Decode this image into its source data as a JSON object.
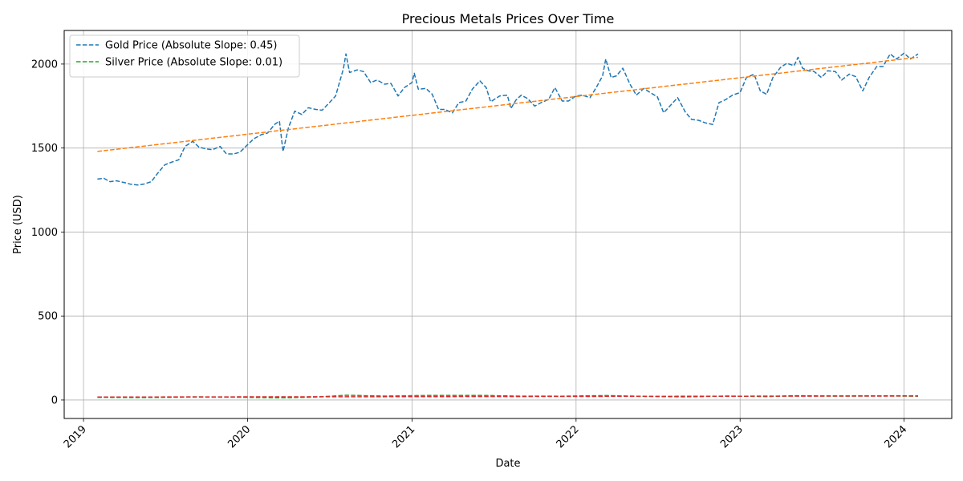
{
  "chart_data": {
    "type": "line",
    "title": "Precious Metals Prices Over Time",
    "xlabel": "Date",
    "ylabel": "Price (USD)",
    "x_tick_labels": [
      "2019",
      "2020",
      "2021",
      "2022",
      "2023",
      "2024"
    ],
    "y_tick_labels": [
      "0",
      "500",
      "1000",
      "1500",
      "2000"
    ],
    "xlim": [
      "2018-11-19",
      "2024-04-16"
    ],
    "ylim": [
      -110,
      2200
    ],
    "grid": true,
    "legend_position": "top-left",
    "series": [
      {
        "name": "Gold Price (Absolute Slope: 0.45)",
        "color": "#1f77b4",
        "style": "dashed",
        "points": [
          [
            "2019-02-01",
            1315
          ],
          [
            "2019-02-15",
            1320
          ],
          [
            "2019-03-01",
            1300
          ],
          [
            "2019-03-15",
            1305
          ],
          [
            "2019-04-01",
            1295
          ],
          [
            "2019-04-15",
            1285
          ],
          [
            "2019-05-01",
            1280
          ],
          [
            "2019-05-15",
            1285
          ],
          [
            "2019-06-01",
            1300
          ],
          [
            "2019-06-15",
            1350
          ],
          [
            "2019-07-01",
            1400
          ],
          [
            "2019-07-15",
            1415
          ],
          [
            "2019-08-01",
            1430
          ],
          [
            "2019-08-15",
            1510
          ],
          [
            "2019-09-01",
            1540
          ],
          [
            "2019-09-15",
            1505
          ],
          [
            "2019-10-01",
            1495
          ],
          [
            "2019-10-15",
            1490
          ],
          [
            "2019-11-01",
            1510
          ],
          [
            "2019-11-15",
            1465
          ],
          [
            "2019-12-01",
            1465
          ],
          [
            "2019-12-15",
            1475
          ],
          [
            "2020-01-01",
            1520
          ],
          [
            "2020-01-15",
            1555
          ],
          [
            "2020-02-01",
            1580
          ],
          [
            "2020-02-15",
            1590
          ],
          [
            "2020-03-01",
            1640
          ],
          [
            "2020-03-12",
            1660
          ],
          [
            "2020-03-20",
            1480
          ],
          [
            "2020-04-01",
            1620
          ],
          [
            "2020-04-15",
            1720
          ],
          [
            "2020-05-01",
            1700
          ],
          [
            "2020-05-15",
            1740
          ],
          [
            "2020-06-01",
            1730
          ],
          [
            "2020-06-15",
            1725
          ],
          [
            "2020-07-01",
            1770
          ],
          [
            "2020-07-15",
            1810
          ],
          [
            "2020-08-01",
            1970
          ],
          [
            "2020-08-07",
            2060
          ],
          [
            "2020-08-15",
            1950
          ],
          [
            "2020-09-01",
            1965
          ],
          [
            "2020-09-15",
            1955
          ],
          [
            "2020-10-01",
            1890
          ],
          [
            "2020-10-15",
            1905
          ],
          [
            "2020-11-01",
            1880
          ],
          [
            "2020-11-15",
            1885
          ],
          [
            "2020-12-01",
            1810
          ],
          [
            "2020-12-15",
            1860
          ],
          [
            "2021-01-01",
            1890
          ],
          [
            "2021-01-06",
            1945
          ],
          [
            "2021-01-15",
            1850
          ],
          [
            "2021-02-01",
            1855
          ],
          [
            "2021-02-15",
            1820
          ],
          [
            "2021-03-01",
            1730
          ],
          [
            "2021-03-15",
            1730
          ],
          [
            "2021-04-01",
            1710
          ],
          [
            "2021-04-15",
            1770
          ],
          [
            "2021-05-01",
            1780
          ],
          [
            "2021-05-15",
            1850
          ],
          [
            "2021-06-01",
            1900
          ],
          [
            "2021-06-15",
            1860
          ],
          [
            "2021-06-25",
            1775
          ],
          [
            "2021-07-15",
            1810
          ],
          [
            "2021-08-01",
            1815
          ],
          [
            "2021-08-09",
            1735
          ],
          [
            "2021-08-20",
            1785
          ],
          [
            "2021-09-01",
            1815
          ],
          [
            "2021-09-15",
            1795
          ],
          [
            "2021-10-01",
            1750
          ],
          [
            "2021-10-15",
            1770
          ],
          [
            "2021-11-01",
            1790
          ],
          [
            "2021-11-15",
            1860
          ],
          [
            "2021-12-01",
            1780
          ],
          [
            "2021-12-15",
            1780
          ],
          [
            "2022-01-01",
            1810
          ],
          [
            "2022-01-15",
            1815
          ],
          [
            "2022-02-01",
            1800
          ],
          [
            "2022-02-15",
            1860
          ],
          [
            "2022-03-01",
            1930
          ],
          [
            "2022-03-08",
            2030
          ],
          [
            "2022-03-20",
            1920
          ],
          [
            "2022-04-01",
            1930
          ],
          [
            "2022-04-15",
            1975
          ],
          [
            "2022-05-01",
            1880
          ],
          [
            "2022-05-15",
            1815
          ],
          [
            "2022-06-01",
            1855
          ],
          [
            "2022-06-15",
            1830
          ],
          [
            "2022-07-01",
            1805
          ],
          [
            "2022-07-15",
            1710
          ],
          [
            "2022-08-01",
            1760
          ],
          [
            "2022-08-15",
            1800
          ],
          [
            "2022-09-01",
            1715
          ],
          [
            "2022-09-15",
            1670
          ],
          [
            "2022-10-01",
            1665
          ],
          [
            "2022-10-15",
            1650
          ],
          [
            "2022-11-01",
            1640
          ],
          [
            "2022-11-15",
            1770
          ],
          [
            "2022-12-01",
            1790
          ],
          [
            "2022-12-15",
            1815
          ],
          [
            "2023-01-01",
            1830
          ],
          [
            "2023-01-15",
            1920
          ],
          [
            "2023-02-01",
            1940
          ],
          [
            "2023-02-15",
            1840
          ],
          [
            "2023-03-01",
            1820
          ],
          [
            "2023-03-15",
            1920
          ],
          [
            "2023-04-01",
            1980
          ],
          [
            "2023-04-15",
            2005
          ],
          [
            "2023-05-01",
            1990
          ],
          [
            "2023-05-10",
            2040
          ],
          [
            "2023-05-20",
            1975
          ],
          [
            "2023-06-01",
            1960
          ],
          [
            "2023-06-15",
            1955
          ],
          [
            "2023-07-01",
            1920
          ],
          [
            "2023-07-15",
            1960
          ],
          [
            "2023-08-01",
            1955
          ],
          [
            "2023-08-15",
            1905
          ],
          [
            "2023-09-01",
            1940
          ],
          [
            "2023-09-15",
            1925
          ],
          [
            "2023-10-01",
            1840
          ],
          [
            "2023-10-15",
            1920
          ],
          [
            "2023-11-01",
            1985
          ],
          [
            "2023-11-15",
            1985
          ],
          [
            "2023-12-01",
            2060
          ],
          [
            "2023-12-15",
            2030
          ],
          [
            "2024-01-01",
            2065
          ],
          [
            "2024-01-15",
            2030
          ],
          [
            "2024-02-01",
            2060
          ]
        ]
      },
      {
        "name": "",
        "color": "#ff7f0e",
        "style": "dashed",
        "points": [
          [
            "2019-02-01",
            1480
          ],
          [
            "2024-02-01",
            2040
          ]
        ]
      },
      {
        "name": "Silver Price (Absolute Slope: 0.01)",
        "color": "#2ca02c",
        "style": "dashed",
        "points": [
          [
            "2019-02-01",
            15.8
          ],
          [
            "2019-05-01",
            14.8
          ],
          [
            "2019-08-01",
            16.5
          ],
          [
            "2019-09-01",
            18.5
          ],
          [
            "2019-12-01",
            17.0
          ],
          [
            "2020-03-15",
            12.5
          ],
          [
            "2020-06-01",
            17.5
          ],
          [
            "2020-08-07",
            28.5
          ],
          [
            "2020-11-01",
            23.5
          ],
          [
            "2021-02-01",
            27.0
          ],
          [
            "2021-06-01",
            27.5
          ],
          [
            "2021-09-01",
            23.0
          ],
          [
            "2021-12-01",
            22.5
          ],
          [
            "2022-03-08",
            26.5
          ],
          [
            "2022-06-01",
            21.5
          ],
          [
            "2022-09-01",
            18.5
          ],
          [
            "2022-12-01",
            23.5
          ],
          [
            "2023-03-01",
            20.5
          ],
          [
            "2023-05-01",
            25.5
          ],
          [
            "2023-08-01",
            23.5
          ],
          [
            "2023-12-01",
            24.5
          ],
          [
            "2024-02-01",
            22.5
          ]
        ]
      },
      {
        "name": "",
        "color": "#d62728",
        "style": "dashed",
        "points": [
          [
            "2019-02-01",
            17.5
          ],
          [
            "2024-02-01",
            24.0
          ]
        ]
      }
    ]
  }
}
